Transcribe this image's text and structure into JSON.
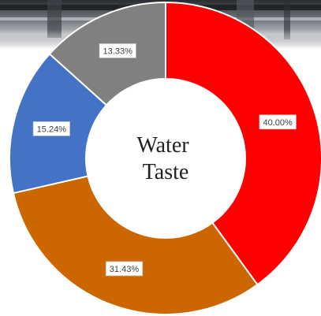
{
  "chart_data": {
    "type": "donut",
    "title_lines": [
      "Water",
      "Taste"
    ],
    "legend": "none",
    "start_angle_deg": 0,
    "direction": "clockwise",
    "hole_fraction": 0.51,
    "slices": [
      {
        "value": 40.0,
        "label": "40.00%",
        "color": "#ff0000"
      },
      {
        "value": 31.43,
        "label": "31.43%",
        "color": "#cc6600"
      },
      {
        "value": 15.24,
        "label": "15.24%",
        "color": "#4472c4"
      },
      {
        "value": 13.33,
        "label": "13.33%",
        "color": "#808080"
      }
    ]
  },
  "background": {
    "header_image": "industrial-pipes-photo",
    "header_colors": [
      "#1c1e22",
      "#5a5f66",
      "#9ea3a8"
    ]
  }
}
